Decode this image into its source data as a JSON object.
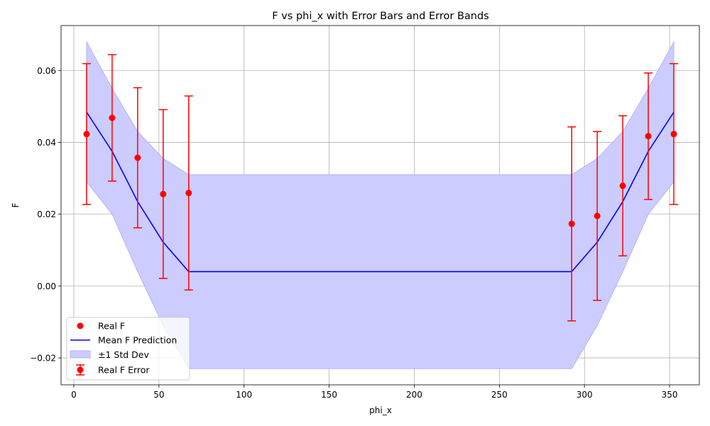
{
  "chart_data": {
    "type": "line",
    "title": "F vs phi_x with Error Bars and Error Bands",
    "xlabel": "phi_x",
    "ylabel": "F",
    "xlim": [
      -7.5,
      367.5
    ],
    "ylim": [
      -0.0275,
      0.0725
    ],
    "xticks": [
      0,
      50,
      100,
      150,
      200,
      250,
      300,
      350
    ],
    "yticks": [
      -0.02,
      0.0,
      0.02,
      0.04,
      0.06
    ],
    "xtick_labels": [
      "0",
      "50",
      "100",
      "150",
      "200",
      "250",
      "300",
      "350"
    ],
    "ytick_labels": [
      "−0.02",
      "0.00",
      "0.02",
      "0.04",
      "0.06"
    ],
    "grid": true,
    "legend_position": "lower-left",
    "colors": {
      "real": "#ff0000",
      "mean_line": "#0000ff",
      "band_fill": "#ccccff",
      "band_edge": "#b3b3ff",
      "grid": "#b0b0b0"
    },
    "series": [
      {
        "name": "Real F",
        "kind": "scatter",
        "x": [
          7.5,
          22.5,
          37.5,
          52.5,
          67.5,
          292.5,
          307.5,
          322.5,
          337.5,
          352.5
        ],
        "y": [
          0.0423,
          0.0468,
          0.0357,
          0.0256,
          0.0259,
          0.0173,
          0.0195,
          0.0279,
          0.0417,
          0.0423
        ],
        "yerr": [
          0.0196,
          0.0176,
          0.0195,
          0.0235,
          0.027,
          0.027,
          0.0235,
          0.0195,
          0.0176,
          0.0196
        ]
      },
      {
        "name": "Mean F Prediction",
        "kind": "line",
        "x": [
          7.5,
          22.5,
          37.5,
          52.5,
          67.5,
          292.5,
          307.5,
          322.5,
          337.5,
          352.5
        ],
        "y": [
          0.0484,
          0.0375,
          0.0235,
          0.0122,
          0.004,
          0.004,
          0.0122,
          0.0235,
          0.0375,
          0.0484
        ]
      },
      {
        "name": "±1 Std Dev",
        "kind": "band",
        "x": [
          7.5,
          22.5,
          37.5,
          52.5,
          67.5,
          292.5,
          307.5,
          322.5,
          337.5,
          352.5
        ],
        "lower": [
          0.029,
          0.02,
          0.004,
          -0.011,
          -0.023,
          -0.023,
          -0.011,
          0.004,
          0.02,
          0.029
        ],
        "upper": [
          0.068,
          0.055,
          0.043,
          0.0355,
          0.031,
          0.031,
          0.0355,
          0.043,
          0.055,
          0.068
        ]
      }
    ],
    "legend": [
      {
        "label": "Real F",
        "marker": "dot"
      },
      {
        "label": "Mean F Prediction",
        "marker": "line"
      },
      {
        "label": "±1 Std Dev",
        "marker": "patch"
      },
      {
        "label": "Real F Error",
        "marker": "errorbar"
      }
    ]
  }
}
